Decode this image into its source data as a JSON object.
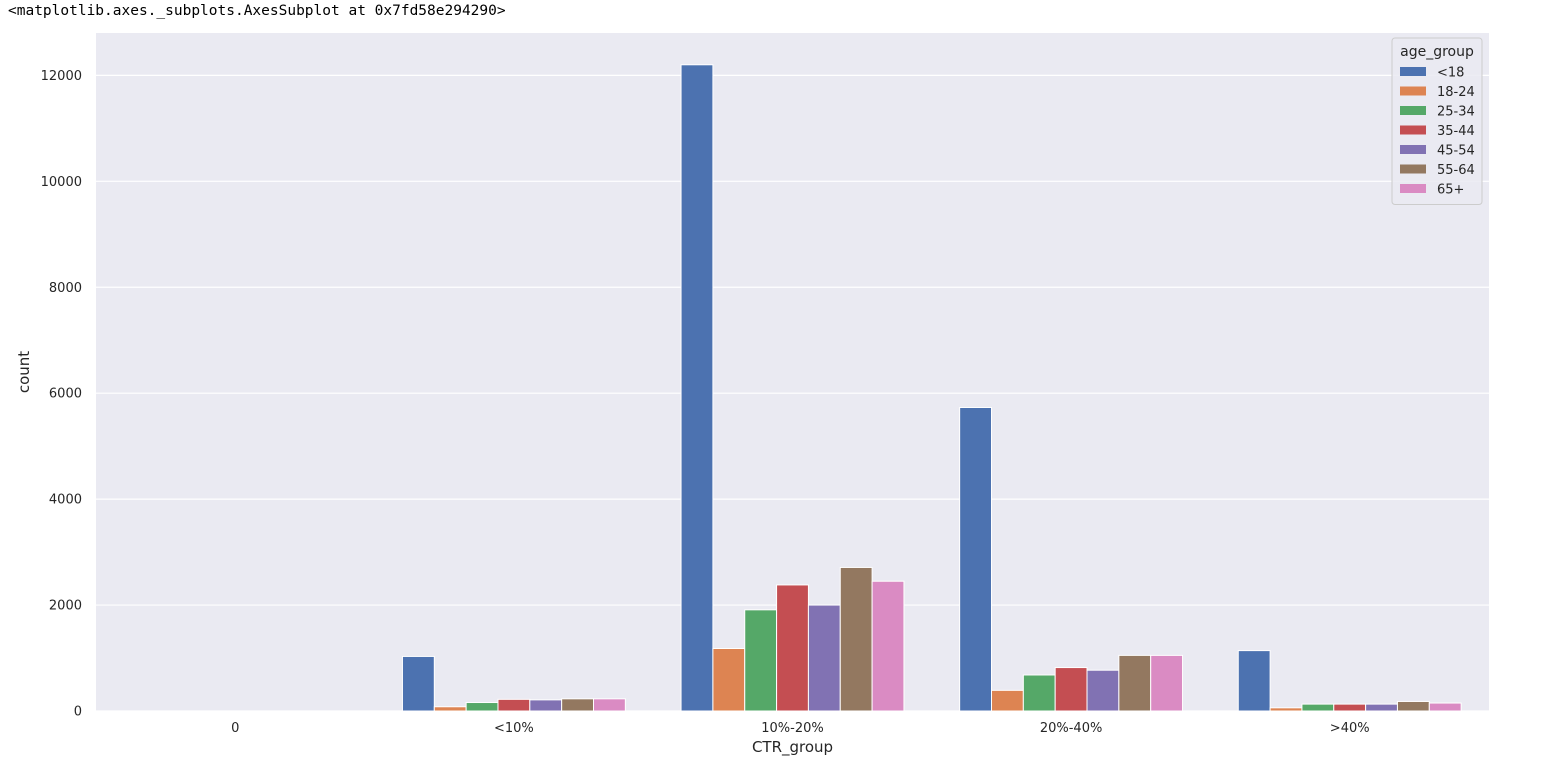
{
  "output_repr": "<matplotlib.axes._subplots.AxesSubplot at 0x7fd58e294290>",
  "chart_data": {
    "type": "bar",
    "title": "",
    "xlabel": "CTR_group",
    "ylabel": "count",
    "categories": [
      "0",
      "<10%",
      "10%-20%",
      "20%-40%",
      ">40%"
    ],
    "ylim": [
      0,
      12800
    ],
    "yticks": [
      0,
      2000,
      4000,
      6000,
      8000,
      10000,
      12000
    ],
    "grid": true,
    "legend": {
      "title": "age_group",
      "placement": "top-right"
    },
    "background_color": "#eaeaf2",
    "series": [
      {
        "name": "<18",
        "color": "#4c72b0",
        "values": [
          0,
          1030,
          12200,
          5730,
          1140
        ]
      },
      {
        "name": "18-24",
        "color": "#dd8452",
        "values": [
          0,
          80,
          1180,
          390,
          60
        ]
      },
      {
        "name": "25-34",
        "color": "#55a868",
        "values": [
          0,
          160,
          1910,
          680,
          130
        ]
      },
      {
        "name": "35-44",
        "color": "#c44e52",
        "values": [
          0,
          220,
          2380,
          820,
          130
        ]
      },
      {
        "name": "45-54",
        "color": "#8172b3",
        "values": [
          0,
          210,
          2000,
          770,
          130
        ]
      },
      {
        "name": "55-64",
        "color": "#937860",
        "values": [
          0,
          230,
          2710,
          1050,
          180
        ]
      },
      {
        "name": "65+",
        "color": "#da8bc3",
        "values": [
          0,
          230,
          2450,
          1050,
          150
        ]
      }
    ]
  }
}
